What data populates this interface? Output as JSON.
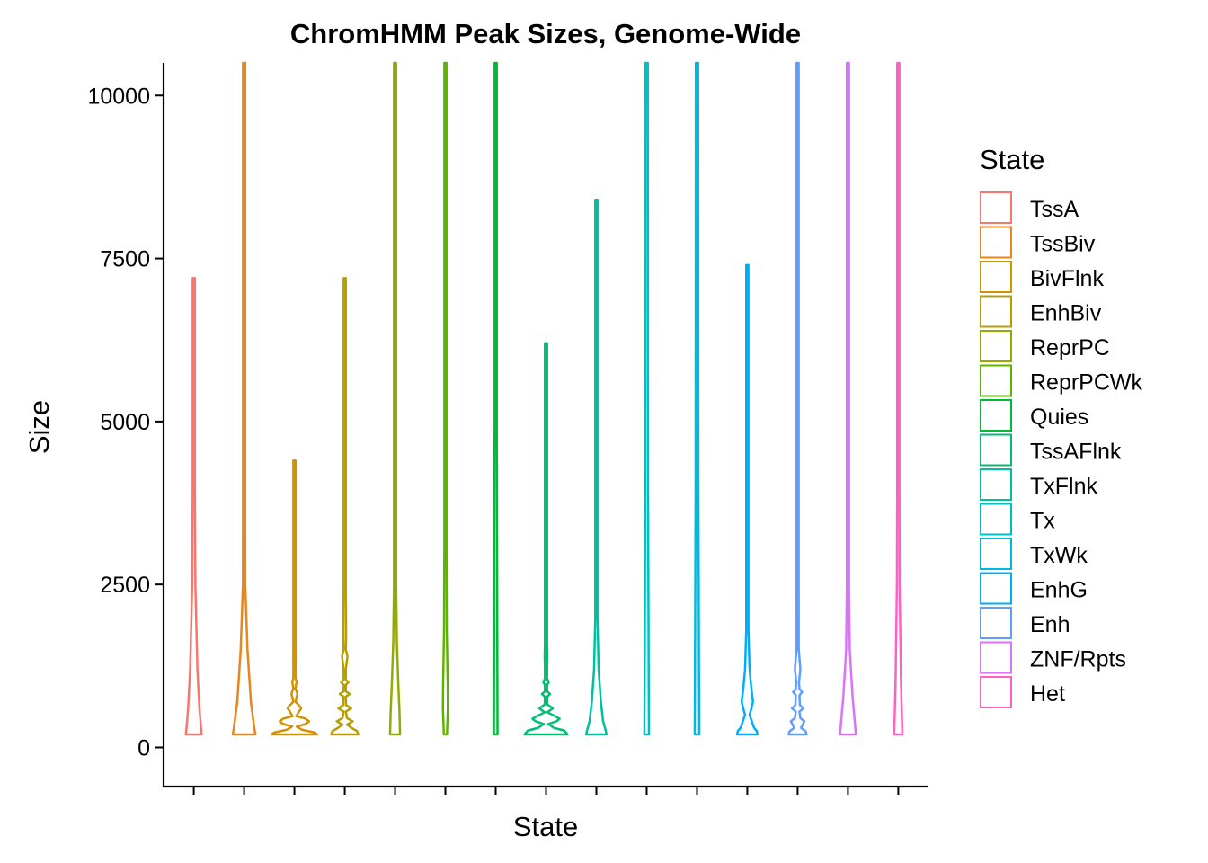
{
  "chart_data": {
    "type": "violin",
    "title": "ChromHMM Peak Sizes, Genome-Wide",
    "xlabel": "State",
    "ylabel": "Size",
    "ylim": [
      -600,
      10500
    ],
    "y_ticks": [
      0,
      2500,
      5000,
      7500,
      10000
    ],
    "y_tick_labels": [
      "0",
      "2500",
      "5000",
      "7500",
      "10000"
    ],
    "legend_title": "State",
    "legend_position": "right",
    "grid": false,
    "categories": [
      "TssA",
      "TssBiv",
      "BivFlnk",
      "EnhBiv",
      "ReprPC",
      "ReprPCWk",
      "Quies",
      "TssAFlnk",
      "TxFlnk",
      "Tx",
      "TxWk",
      "EnhG",
      "Enh",
      "ZNF/Rpts",
      "Het"
    ],
    "series": [
      {
        "name": "TssA",
        "color": "#F8766D",
        "min": 200,
        "max": 7200,
        "profile": [
          [
            200,
            0.35
          ],
          [
            300,
            0.32
          ],
          [
            600,
            0.25
          ],
          [
            1200,
            0.16
          ],
          [
            2500,
            0.07
          ],
          [
            4000,
            0.03
          ],
          [
            7200,
            0.01
          ]
        ]
      },
      {
        "name": "TssBiv",
        "color": "#E7861B",
        "min": 200,
        "max": 10500,
        "profile": [
          [
            200,
            0.5
          ],
          [
            300,
            0.45
          ],
          [
            700,
            0.3
          ],
          [
            1500,
            0.15
          ],
          [
            2500,
            0.05
          ],
          [
            4000,
            0.02
          ],
          [
            10500,
            0.01
          ]
        ]
      },
      {
        "name": "BivFlnk",
        "color": "#D39200",
        "min": 200,
        "max": 4400,
        "profile": [
          [
            200,
            1
          ],
          [
            230,
            0.9
          ],
          [
            270,
            0.35
          ],
          [
            320,
            0.1
          ],
          [
            360,
            0.5
          ],
          [
            400,
            0.65
          ],
          [
            440,
            0.5
          ],
          [
            480,
            0.08
          ],
          [
            560,
            0.22
          ],
          [
            600,
            0.3
          ],
          [
            640,
            0.22
          ],
          [
            700,
            0.05
          ],
          [
            780,
            0.1
          ],
          [
            820,
            0.13
          ],
          [
            860,
            0.1
          ],
          [
            900,
            0.04
          ],
          [
            980,
            0.08
          ],
          [
            1000,
            0.1
          ],
          [
            1060,
            0.05
          ],
          [
            1200,
            0.03
          ],
          [
            1400,
            0.05
          ],
          [
            1600,
            0.02
          ],
          [
            3000,
            0.01
          ],
          [
            4400,
            0.008
          ]
        ]
      },
      {
        "name": "EnhBiv",
        "color": "#B79F00",
        "min": 200,
        "max": 7200,
        "profile": [
          [
            200,
            0.6
          ],
          [
            250,
            0.55
          ],
          [
            300,
            0.3
          ],
          [
            350,
            0.1
          ],
          [
            400,
            0.35
          ],
          [
            450,
            0.1
          ],
          [
            550,
            0.05
          ],
          [
            600,
            0.28
          ],
          [
            650,
            0.06
          ],
          [
            780,
            0.05
          ],
          [
            820,
            0.22
          ],
          [
            860,
            0.05
          ],
          [
            960,
            0.04
          ],
          [
            1000,
            0.16
          ],
          [
            1040,
            0.04
          ],
          [
            1200,
            0.03
          ],
          [
            1400,
            0.12
          ],
          [
            1500,
            0.03
          ],
          [
            1700,
            0.06
          ],
          [
            2500,
            0.02
          ],
          [
            7200,
            0.01
          ]
        ]
      },
      {
        "name": "ReprPC",
        "color": "#93AA00",
        "min": 200,
        "max": 10500,
        "profile": [
          [
            200,
            0.22
          ],
          [
            500,
            0.2
          ],
          [
            1000,
            0.14
          ],
          [
            1600,
            0.08
          ],
          [
            2500,
            0.04
          ],
          [
            4000,
            0.015
          ],
          [
            10500,
            0.008
          ]
        ]
      },
      {
        "name": "ReprPCWk",
        "color": "#5EB300",
        "min": 200,
        "max": 10500,
        "profile": [
          [
            200,
            0.07
          ],
          [
            600,
            0.11
          ],
          [
            1000,
            0.1
          ],
          [
            1800,
            0.06
          ],
          [
            3000,
            0.03
          ],
          [
            5000,
            0.012
          ],
          [
            10500,
            0.008
          ]
        ]
      },
      {
        "name": "Quies",
        "color": "#00BA38",
        "min": 200,
        "max": 10500,
        "profile": [
          [
            200,
            0.08
          ],
          [
            1500,
            0.07
          ],
          [
            5000,
            0.04
          ],
          [
            10500,
            0.03
          ]
        ]
      },
      {
        "name": "TssAFlnk",
        "color": "#00BF74",
        "min": 200,
        "max": 6200,
        "profile": [
          [
            200,
            0.95
          ],
          [
            260,
            0.8
          ],
          [
            300,
            0.35
          ],
          [
            360,
            0.1
          ],
          [
            400,
            0.45
          ],
          [
            440,
            0.6
          ],
          [
            480,
            0.4
          ],
          [
            540,
            0.06
          ],
          [
            600,
            0.3
          ],
          [
            660,
            0.06
          ],
          [
            780,
            0.05
          ],
          [
            820,
            0.18
          ],
          [
            860,
            0.05
          ],
          [
            960,
            0.03
          ],
          [
            1000,
            0.12
          ],
          [
            1060,
            0.03
          ],
          [
            1200,
            0.02
          ],
          [
            1400,
            0.06
          ],
          [
            1600,
            0.02
          ],
          [
            3000,
            0.01
          ],
          [
            6200,
            0.008
          ]
        ]
      },
      {
        "name": "TxFlnk",
        "color": "#00C19F",
        "min": 200,
        "max": 8400,
        "profile": [
          [
            200,
            0.45
          ],
          [
            250,
            0.42
          ],
          [
            400,
            0.3
          ],
          [
            700,
            0.2
          ],
          [
            1200,
            0.1
          ],
          [
            2000,
            0.04
          ],
          [
            4000,
            0.015
          ],
          [
            8400,
            0.008
          ]
        ]
      },
      {
        "name": "Tx",
        "color": "#00BFC4",
        "min": 200,
        "max": 10500,
        "profile": [
          [
            200,
            0.1
          ],
          [
            1000,
            0.09
          ],
          [
            4000,
            0.06
          ],
          [
            10500,
            0.05
          ]
        ]
      },
      {
        "name": "TxWk",
        "color": "#00B9E3",
        "min": 200,
        "max": 10500,
        "profile": [
          [
            200,
            0.1
          ],
          [
            1000,
            0.09
          ],
          [
            4000,
            0.06
          ],
          [
            10500,
            0.05
          ]
        ]
      },
      {
        "name": "EnhG",
        "color": "#00ADFA",
        "min": 200,
        "max": 7400,
        "profile": [
          [
            200,
            0.45
          ],
          [
            250,
            0.42
          ],
          [
            300,
            0.3
          ],
          [
            400,
            0.2
          ],
          [
            500,
            0.1
          ],
          [
            600,
            0.18
          ],
          [
            700,
            0.25
          ],
          [
            900,
            0.18
          ],
          [
            1200,
            0.1
          ],
          [
            1800,
            0.04
          ],
          [
            3000,
            0.015
          ],
          [
            7400,
            0.008
          ]
        ]
      },
      {
        "name": "Enh",
        "color": "#619CFF",
        "min": 200,
        "max": 10500,
        "profile": [
          [
            200,
            0.4
          ],
          [
            250,
            0.35
          ],
          [
            300,
            0.15
          ],
          [
            400,
            0.3
          ],
          [
            450,
            0.12
          ],
          [
            550,
            0.08
          ],
          [
            600,
            0.25
          ],
          [
            650,
            0.1
          ],
          [
            800,
            0.08
          ],
          [
            850,
            0.2
          ],
          [
            900,
            0.08
          ],
          [
            1000,
            0.06
          ],
          [
            1200,
            0.12
          ],
          [
            1500,
            0.05
          ],
          [
            2500,
            0.02
          ],
          [
            10500,
            0.008
          ]
        ]
      },
      {
        "name": "ZNF/Rpts",
        "color": "#DB72FB",
        "min": 200,
        "max": 10500,
        "profile": [
          [
            200,
            0.35
          ],
          [
            400,
            0.3
          ],
          [
            800,
            0.2
          ],
          [
            1500,
            0.08
          ],
          [
            2500,
            0.03
          ],
          [
            10500,
            0.008
          ]
        ]
      },
      {
        "name": "Het",
        "color": "#FF61C3",
        "min": 200,
        "max": 10500,
        "profile": [
          [
            200,
            0.18
          ],
          [
            1000,
            0.12
          ],
          [
            2500,
            0.06
          ],
          [
            4000,
            0.03
          ],
          [
            10500,
            0.012
          ]
        ]
      }
    ]
  }
}
